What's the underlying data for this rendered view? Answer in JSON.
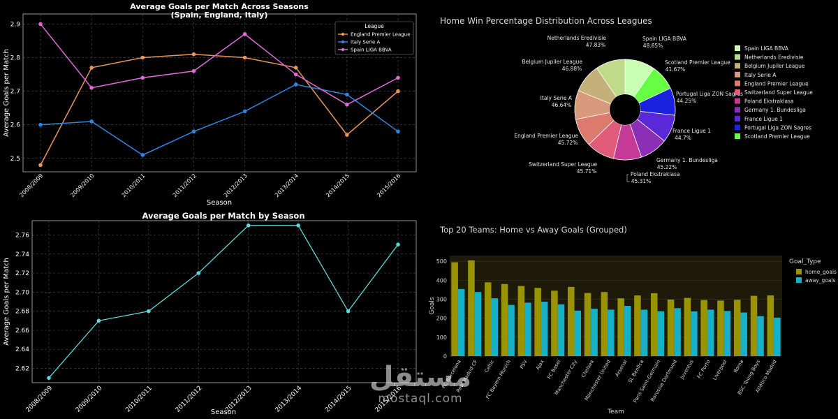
{
  "chart_data": [
    {
      "type": "line",
      "title": "Average Goals per Match Across Seasons",
      "subtitle": "(Spain, England, Italy)",
      "xlabel": "Season",
      "ylabel": "Average Goals per Match",
      "categories": [
        "2008/2009",
        "2009/2010",
        "2010/2011",
        "2011/2012",
        "2012/2013",
        "2013/2014",
        "2014/2015",
        "2015/2016"
      ],
      "ylim": [
        2.46,
        2.93
      ],
      "yticks": [
        2.5,
        2.6,
        2.7,
        2.8,
        2.9
      ],
      "grid": true,
      "legend_title": "League",
      "legend_position": "top-right",
      "series": [
        {
          "name": "England Premier League",
          "color": "#e8955a",
          "values": [
            2.48,
            2.77,
            2.8,
            2.81,
            2.8,
            2.77,
            2.57,
            2.7
          ]
        },
        {
          "name": "Italy Serie A",
          "color": "#2f86e0",
          "values": [
            2.6,
            2.61,
            2.51,
            2.58,
            2.64,
            2.72,
            2.69,
            2.58
          ]
        },
        {
          "name": "Spain LIGA BBVA",
          "color": "#e06ad8",
          "values": [
            2.9,
            2.71,
            2.74,
            2.76,
            2.87,
            2.75,
            2.66,
            2.74
          ]
        }
      ]
    },
    {
      "type": "pie",
      "title": "Home Win Percentage Distribution Across Leagues",
      "donut": true,
      "legend_position": "right",
      "slices": [
        {
          "label": "Spain LIGA BBVA",
          "text": "48.85%",
          "value": 48.85,
          "color": "#c8ffb2"
        },
        {
          "label": "Scotland Premier League",
          "text": "41.67%",
          "value": 41.67,
          "color": "#66ff44"
        },
        {
          "label": "Portugal Liga ZON Sagres",
          "text": "44.25%",
          "value": 44.25,
          "color": "#1a22e0"
        },
        {
          "label": "France Ligue 1",
          "text": "44.7%",
          "value": 44.7,
          "color": "#5a28d8"
        },
        {
          "label": "Germany 1. Bundesliga",
          "text": "45.22%",
          "value": 45.22,
          "color": "#8c2eb6"
        },
        {
          "label": "Poland Ekstraklasa",
          "text": "45.31%",
          "value": 45.31,
          "color": "#c43a96"
        },
        {
          "label": "Switzerland Super League",
          "text": "45.71%",
          "value": 45.71,
          "color": "#e05c78"
        },
        {
          "label": "England Premier League",
          "text": "45.72%",
          "value": 45.72,
          "color": "#dc7a6e"
        },
        {
          "label": "Italy Serie A",
          "text": "46.64%",
          "value": 46.64,
          "color": "#d89a7c"
        },
        {
          "label": "Belgium Jupiler League",
          "text": "46.88%",
          "value": 46.88,
          "color": "#c4b078"
        },
        {
          "label": "Netherlands Eredivisie",
          "text": "47.83%",
          "value": 47.83,
          "color": "#bfda88"
        }
      ],
      "legend": [
        "Spain LIGA BBVA",
        "Netherlands Eredivisie",
        "Belgium Jupiler League",
        "Italy Serie A",
        "England Premier League",
        "Switzerland Super League",
        "Poland Ekstraklasa",
        "Germany 1. Bundesliga",
        "France Ligue 1",
        "Portugal Liga ZON Sagres",
        "Scotland Premier League"
      ]
    },
    {
      "type": "line",
      "title": "Average Goals per Match by Season",
      "xlabel": "Season",
      "ylabel": "Average Goals per Match",
      "categories": [
        "2008/2009",
        "2009/2010",
        "2010/2011",
        "2011/2012",
        "2012/2013",
        "2013/2014",
        "2014/2015",
        "2015/2016"
      ],
      "values": [
        2.61,
        2.67,
        2.68,
        2.72,
        2.77,
        2.77,
        2.68,
        2.75
      ],
      "ylim": [
        2.605,
        2.775
      ],
      "yticks": [
        2.62,
        2.64,
        2.66,
        2.68,
        2.7,
        2.72,
        2.74,
        2.76
      ],
      "yticklabels": [
        "2.62",
        "2.64",
        "2.66",
        "2.68",
        "2.70",
        "2.72",
        "2.74",
        "2.76"
      ],
      "color": "#5ed8dc",
      "grid": true
    },
    {
      "type": "bar",
      "title": "Top 20 Teams: Home vs Away Goals (Grouped)",
      "xlabel": "Team",
      "ylabel": "Goals",
      "ylim": [
        0,
        530
      ],
      "yticks": [
        0,
        100,
        200,
        300,
        400,
        500
      ],
      "legend_title": "Goal_Type",
      "legend_position": "right",
      "categories": [
        "FC Barcelona",
        "Real Madrid CF",
        "Celtic",
        "FC Bayern Munich",
        "PSV",
        "Ajax",
        "FC Basel",
        "Manchester City",
        "Chelsea",
        "Manchester United",
        "Arsenal",
        "SL Benfica",
        "Paris Saint-Germain",
        "Borussia Dortmund",
        "Juventus",
        "FC Porto",
        "Liverpool",
        "Roma",
        "BSC Young Boys",
        "Atlético Madrid"
      ],
      "series": [
        {
          "name": "home_goals",
          "color": "#9a9400",
          "values": [
            495,
            505,
            389,
            380,
            370,
            360,
            345,
            365,
            333,
            338,
            305,
            320,
            332,
            298,
            307,
            296,
            293,
            297,
            318,
            320
          ]
        },
        {
          "name": "away_goals",
          "color": "#16b1c8",
          "values": [
            354,
            338,
            305,
            270,
            282,
            287,
            273,
            240,
            250,
            245,
            265,
            245,
            237,
            253,
            236,
            245,
            238,
            230,
            211,
            203
          ]
        }
      ]
    }
  ],
  "watermark": {
    "arabic": "مستقل",
    "latin": "mostaql.com"
  }
}
